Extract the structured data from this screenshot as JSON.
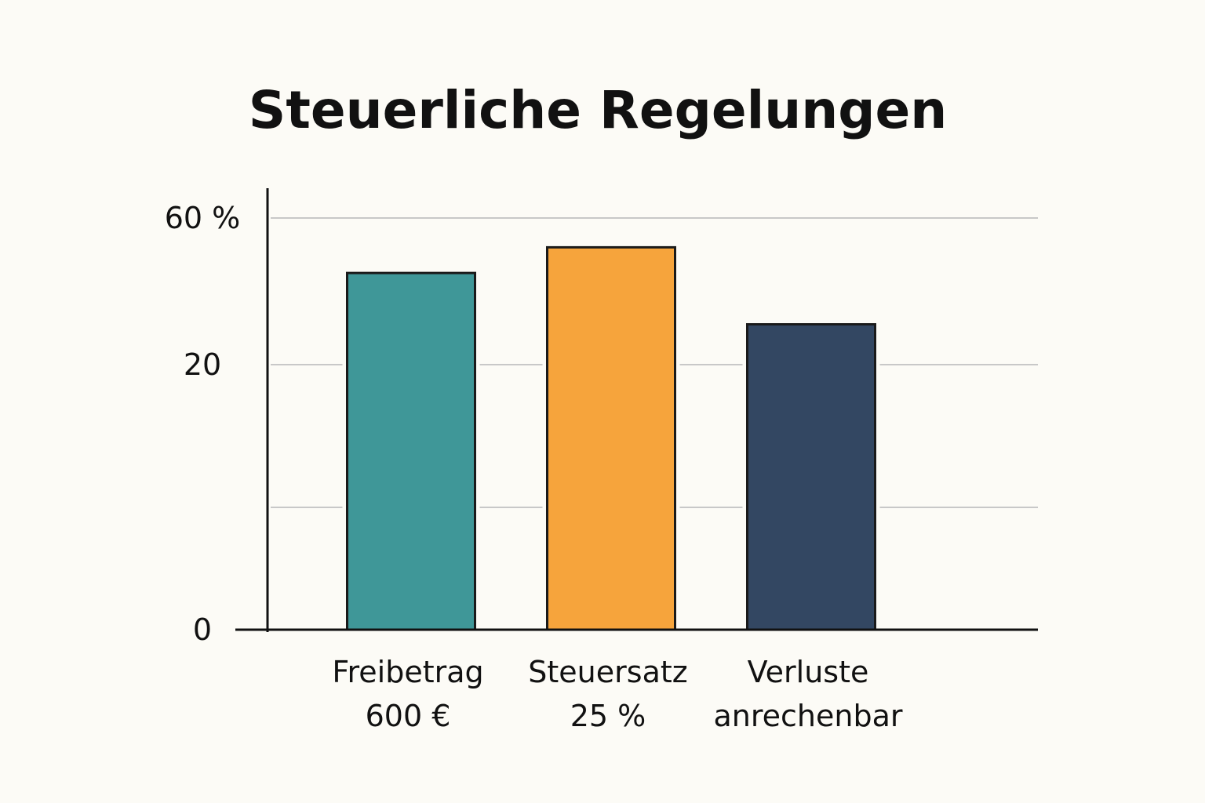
{
  "chart_data": {
    "type": "bar",
    "title": "Steuerliche Regelungen",
    "xlabel": "",
    "ylabel": "",
    "categories": [
      [
        "Freibetrag",
        "600 €"
      ],
      [
        "Steuersatz",
        "25 %"
      ],
      [
        "Verluste",
        "anrechenbar"
      ]
    ],
    "values": [
      45,
      52,
      31
    ],
    "colors": [
      "#3f9798",
      "#f6a43c",
      "#334762"
    ],
    "yticks": [
      {
        "value": 0,
        "label": "0"
      },
      {
        "value": 20,
        "label": "20"
      },
      {
        "value": 60,
        "label": "60 %"
      }
    ],
    "ylim": [
      0,
      60
    ],
    "grid": true,
    "legend": "none"
  }
}
